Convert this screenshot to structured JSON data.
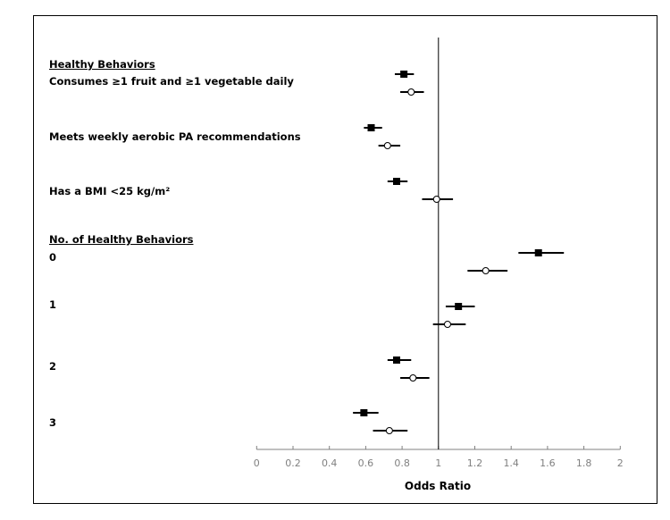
{
  "chart_data": {
    "type": "forest",
    "xlabel": "Odds Ratio",
    "xlim": [
      0,
      2
    ],
    "xticks": [
      "0",
      "0.2",
      "0.4",
      "0.6",
      "0.8",
      "1",
      "1.2",
      "1.4",
      "1.6",
      "1.8",
      "2"
    ],
    "reference_line": 1,
    "grid": false,
    "markers": {
      "series_1": "filled-square",
      "series_2": "open-circle"
    },
    "headings": [
      "Healthy Behaviors",
      "No. of Healthy Behaviors"
    ],
    "groups": [
      {
        "label": "Consumes ≥1 fruit and ≥1 vegetable daily",
        "heading": 0,
        "estimates": [
          {
            "or": 0.81,
            "lo": 0.76,
            "hi": 0.865
          },
          {
            "or": 0.85,
            "lo": 0.79,
            "hi": 0.92
          }
        ]
      },
      {
        "label": "Meets weekly aerobic PA recommendations",
        "heading": 0,
        "estimates": [
          {
            "or": 0.63,
            "lo": 0.59,
            "hi": 0.69
          },
          {
            "or": 0.72,
            "lo": 0.67,
            "hi": 0.79
          }
        ]
      },
      {
        "label": "Has a BMI <25 kg/m²",
        "heading": 0,
        "estimates": [
          {
            "or": 0.77,
            "lo": 0.72,
            "hi": 0.83
          },
          {
            "or": 0.99,
            "lo": 0.91,
            "hi": 1.08
          }
        ]
      },
      {
        "label": "0",
        "heading": 1,
        "estimates": [
          {
            "or": 1.55,
            "lo": 1.44,
            "hi": 1.69
          },
          {
            "or": 1.26,
            "lo": 1.16,
            "hi": 1.38
          }
        ]
      },
      {
        "label": "1",
        "heading": 1,
        "estimates": [
          {
            "or": 1.11,
            "lo": 1.04,
            "hi": 1.2
          },
          {
            "or": 1.05,
            "lo": 0.97,
            "hi": 1.15
          }
        ]
      },
      {
        "label": "2",
        "heading": 1,
        "estimates": [
          {
            "or": 0.77,
            "lo": 0.72,
            "hi": 0.85
          },
          {
            "or": 0.86,
            "lo": 0.79,
            "hi": 0.95
          }
        ]
      },
      {
        "label": "3",
        "heading": 1,
        "estimates": [
          {
            "or": 0.59,
            "lo": 0.53,
            "hi": 0.67
          },
          {
            "or": 0.73,
            "lo": 0.64,
            "hi": 0.83
          }
        ]
      }
    ]
  }
}
